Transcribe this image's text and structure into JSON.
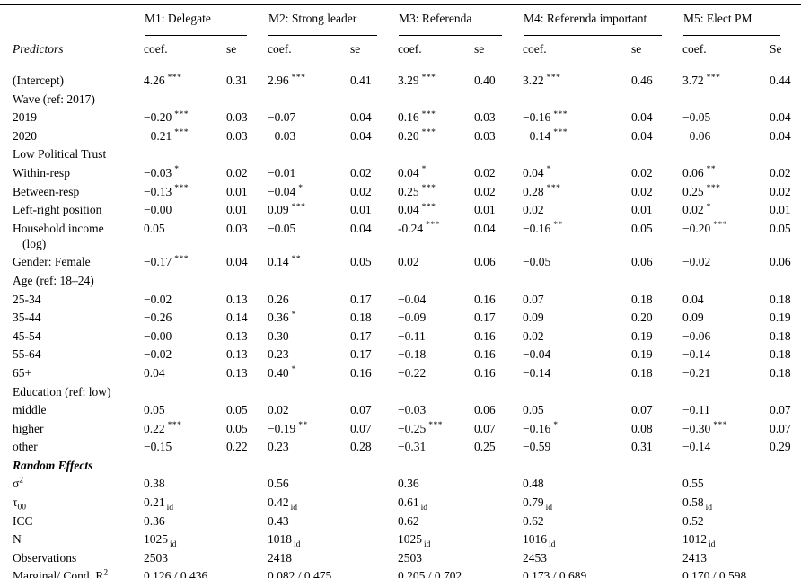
{
  "colors": {
    "text": "#000000",
    "background": "#ffffff",
    "rules": "#000000"
  },
  "table": {
    "predictors_header": "Predictors",
    "models": [
      {
        "name": "M1: Delegate",
        "coef_label": "coef.",
        "se_label": "se"
      },
      {
        "name": "M2: Strong leader",
        "coef_label": "coef.",
        "se_label": "se"
      },
      {
        "name": "M3: Referenda",
        "coef_label": "coef.",
        "se_label": "se"
      },
      {
        "name": "M4: Referenda important",
        "coef_label": "coef.",
        "se_label": "se"
      },
      {
        "name": "M5: Elect PM",
        "coef_label": "coef.",
        "se_label": "Se"
      }
    ],
    "rows": [
      {
        "type": "data",
        "label": "(Intercept)",
        "cells": [
          [
            "4.26",
            "***",
            "0.31"
          ],
          [
            "2.96",
            "***",
            "0.41"
          ],
          [
            "3.29",
            "***",
            "0.40"
          ],
          [
            "3.22",
            "***",
            "0.46"
          ],
          [
            "3.72",
            "***",
            "0.44"
          ]
        ]
      },
      {
        "type": "section",
        "label": "Wave (ref: 2017)"
      },
      {
        "type": "data",
        "label": "2019",
        "cells": [
          [
            "−0.20",
            "***",
            "0.03"
          ],
          [
            "−0.07",
            "",
            "0.04"
          ],
          [
            "0.16",
            "***",
            "0.03"
          ],
          [
            "−0.16",
            "***",
            "0.04"
          ],
          [
            "−0.05",
            "",
            "0.04"
          ]
        ]
      },
      {
        "type": "data",
        "label": "2020",
        "cells": [
          [
            "−0.21",
            "***",
            "0.03"
          ],
          [
            "−0.03",
            "",
            "0.04"
          ],
          [
            "0.20",
            "***",
            "0.03"
          ],
          [
            "−0.14",
            "***",
            "0.04"
          ],
          [
            "−0.06",
            "",
            "0.04"
          ]
        ]
      },
      {
        "type": "section",
        "label": "Low Political Trust"
      },
      {
        "type": "data",
        "label": "Within-resp",
        "cells": [
          [
            "−0.03",
            "*",
            "0.02"
          ],
          [
            "−0.01",
            "",
            "0.02"
          ],
          [
            "0.04",
            "*",
            "0.02"
          ],
          [
            "0.04",
            "*",
            "0.02"
          ],
          [
            "0.06",
            "**",
            "0.02"
          ]
        ]
      },
      {
        "type": "data",
        "label": "Between-resp",
        "cells": [
          [
            "−0.13",
            "***",
            "0.01"
          ],
          [
            "−0.04",
            "*",
            "0.02"
          ],
          [
            "0.25",
            "***",
            "0.02"
          ],
          [
            "0.28",
            "***",
            "0.02"
          ],
          [
            "0.25",
            "***",
            "0.02"
          ]
        ]
      },
      {
        "type": "data",
        "label": "Left-right position",
        "cells": [
          [
            "−0.00",
            "",
            "0.01"
          ],
          [
            "0.09",
            "***",
            "0.01"
          ],
          [
            "0.04",
            "***",
            "0.01"
          ],
          [
            "0.02",
            "",
            "0.01"
          ],
          [
            "0.02",
            "*",
            "0.01"
          ]
        ]
      },
      {
        "type": "data",
        "label": "Household income",
        "label2": "(log)",
        "cells": [
          [
            "0.05",
            "",
            "0.03"
          ],
          [
            "−0.05",
            "",
            "0.04"
          ],
          [
            "-0.24",
            "***",
            "0.04"
          ],
          [
            "−0.16",
            "**",
            "0.05"
          ],
          [
            "−0.20",
            "***",
            "0.05"
          ]
        ]
      },
      {
        "type": "data",
        "label": "Gender: Female",
        "cells": [
          [
            "−0.17",
            "***",
            "0.04"
          ],
          [
            "0.14",
            "**",
            "0.05"
          ],
          [
            "0.02",
            "",
            "0.06"
          ],
          [
            "−0.05",
            "",
            "0.06"
          ],
          [
            "−0.02",
            "",
            "0.06"
          ]
        ]
      },
      {
        "type": "section",
        "label": "Age (ref: 18–24)"
      },
      {
        "type": "data",
        "label": "25-34",
        "cells": [
          [
            "−0.02",
            "",
            "0.13"
          ],
          [
            "0.26",
            "",
            "0.17"
          ],
          [
            "−0.04",
            "",
            "0.16"
          ],
          [
            "0.07",
            "",
            "0.18"
          ],
          [
            "0.04",
            "",
            "0.18"
          ]
        ]
      },
      {
        "type": "data",
        "label": "35-44",
        "cells": [
          [
            "−0.26",
            "",
            "0.14"
          ],
          [
            "0.36",
            "*",
            "0.18"
          ],
          [
            "−0.09",
            "",
            "0.17"
          ],
          [
            "0.09",
            "",
            "0.20"
          ],
          [
            "0.09",
            "",
            "0.19"
          ]
        ]
      },
      {
        "type": "data",
        "label": "45-54",
        "cells": [
          [
            "−0.00",
            "",
            "0.13"
          ],
          [
            "0.30",
            "",
            "0.17"
          ],
          [
            "−0.11",
            "",
            "0.16"
          ],
          [
            "0.02",
            "",
            "0.19"
          ],
          [
            "−0.06",
            "",
            "0.18"
          ]
        ]
      },
      {
        "type": "data",
        "label": "55-64",
        "cells": [
          [
            "−0.02",
            "",
            "0.13"
          ],
          [
            "0.23",
            "",
            "0.17"
          ],
          [
            "−0.18",
            "",
            "0.16"
          ],
          [
            "−0.04",
            "",
            "0.19"
          ],
          [
            "−0.14",
            "",
            "0.18"
          ]
        ]
      },
      {
        "type": "data",
        "label": "65+",
        "cells": [
          [
            "0.04",
            "",
            "0.13"
          ],
          [
            "0.40",
            "*",
            "0.16"
          ],
          [
            "−0.22",
            "",
            "0.16"
          ],
          [
            "−0.14",
            "",
            "0.18"
          ],
          [
            "−0.21",
            "",
            "0.18"
          ]
        ]
      },
      {
        "type": "section",
        "label": "Education (ref: low)"
      },
      {
        "type": "data",
        "label": "middle",
        "cells": [
          [
            "0.05",
            "",
            "0.05"
          ],
          [
            "0.02",
            "",
            "0.07"
          ],
          [
            "−0.03",
            "",
            "0.06"
          ],
          [
            "0.05",
            "",
            "0.07"
          ],
          [
            "−0.11",
            "",
            "0.07"
          ]
        ]
      },
      {
        "type": "data",
        "label": "higher",
        "cells": [
          [
            "0.22",
            "***",
            "0.05"
          ],
          [
            "−0.19",
            "**",
            "0.07"
          ],
          [
            "−0.25",
            "***",
            "0.07"
          ],
          [
            "−0.16",
            "*",
            "0.08"
          ],
          [
            "−0.30",
            "***",
            "0.07"
          ]
        ]
      },
      {
        "type": "data",
        "label": "other",
        "cells": [
          [
            "−0.15",
            "",
            "0.22"
          ],
          [
            "0.23",
            "",
            "0.28"
          ],
          [
            "−0.31",
            "",
            "0.25"
          ],
          [
            "−0.59",
            "",
            "0.31"
          ],
          [
            "−0.14",
            "",
            "0.29"
          ]
        ]
      },
      {
        "type": "section_bold",
        "label": "Random Effects"
      },
      {
        "type": "stat",
        "label": "σ",
        "label_sup": "2",
        "cells": [
          [
            "0.38",
            ""
          ],
          [
            "0.56",
            ""
          ],
          [
            "0.36",
            ""
          ],
          [
            "0.48",
            ""
          ],
          [
            "0.55",
            ""
          ]
        ]
      },
      {
        "type": "stat",
        "label": "τ",
        "label_sub": "00",
        "cells": [
          [
            "0.21",
            "id"
          ],
          [
            "0.42",
            "id"
          ],
          [
            "0.61",
            "id"
          ],
          [
            "0.79",
            "id"
          ],
          [
            "0.58",
            "id"
          ]
        ]
      },
      {
        "type": "stat",
        "label": "ICC",
        "cells": [
          [
            "0.36",
            ""
          ],
          [
            "0.43",
            ""
          ],
          [
            "0.62",
            ""
          ],
          [
            "0.62",
            ""
          ],
          [
            "0.52",
            ""
          ]
        ]
      },
      {
        "type": "stat",
        "label": "N",
        "cells": [
          [
            "1025",
            "id"
          ],
          [
            "1018",
            "id"
          ],
          [
            "1025",
            "id"
          ],
          [
            "1016",
            "id"
          ],
          [
            "1012",
            "id"
          ]
        ]
      },
      {
        "type": "stat",
        "label": "Observations",
        "cells": [
          [
            "2503",
            ""
          ],
          [
            "2418",
            ""
          ],
          [
            "2503",
            ""
          ],
          [
            "2453",
            ""
          ],
          [
            "2413",
            ""
          ]
        ]
      },
      {
        "type": "stat",
        "label": "Marginal/ Cond. R",
        "label_sup": "2",
        "cells": [
          [
            "0.126 / 0.436",
            ""
          ],
          [
            "0.082 / 0.475",
            ""
          ],
          [
            "0.205 / 0.702",
            ""
          ],
          [
            "0.173 / 0.689",
            ""
          ],
          [
            "0.170 / 0.598",
            ""
          ]
        ]
      }
    ]
  }
}
